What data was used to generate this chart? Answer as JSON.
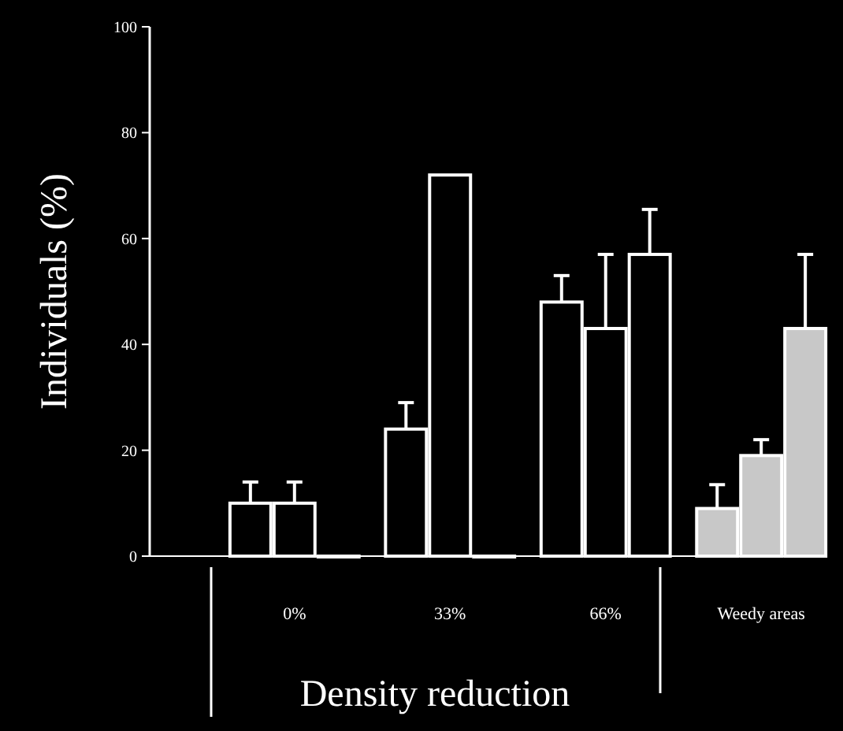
{
  "chart_data": {
    "type": "bar",
    "xlabel": "Density reduction",
    "ylabel": "Individuals (%)",
    "categories": [
      "0%",
      "33%",
      "66%",
      "Weedy areas"
    ],
    "series": [
      {
        "colors": [
          "#000000",
          "#000000",
          "#000000",
          "#c8c8c8"
        ],
        "values": [
          10,
          24,
          48,
          9
        ],
        "errors": [
          4,
          5,
          5,
          4.5
        ]
      },
      {
        "colors": [
          "#000000",
          "#000000",
          "#000000",
          "#c8c8c8"
        ],
        "values": [
          10,
          72,
          43,
          19
        ],
        "errors": [
          4,
          null,
          14,
          3
        ]
      },
      {
        "colors": [
          "#000000",
          "#000000",
          "#000000",
          "#c8c8c8"
        ],
        "values": [
          0,
          0,
          57,
          43
        ],
        "errors": [
          null,
          null,
          8.5,
          14
        ]
      }
    ],
    "ylim": [
      0,
      100
    ],
    "yticks": [
      0,
      20,
      40,
      60,
      80,
      100
    ]
  }
}
